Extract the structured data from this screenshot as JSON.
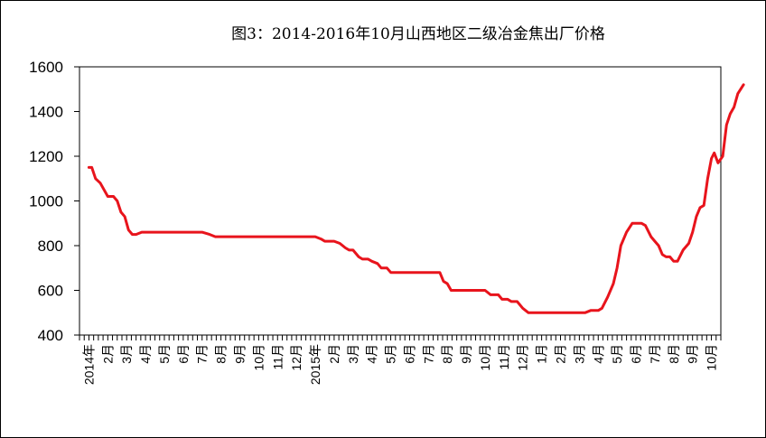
{
  "chart_data": {
    "type": "line",
    "title": "图3：2014-2016年10月山西地区二级冶金焦出厂价格",
    "xlabel": "",
    "ylabel": "",
    "ylim": [
      400,
      1600
    ],
    "yticks": [
      "400",
      "600",
      "800",
      "1000",
      "1200",
      "1400",
      "1600"
    ],
    "grid": false,
    "legend": "none",
    "line_color": "#e8141c",
    "x_tick_labels": [
      "2014年",
      "2月",
      "3月",
      "4月",
      "5月",
      "6月",
      "7月",
      "8月",
      "9月",
      "10月",
      "11月",
      "12月",
      "2015年",
      "2月",
      "3月",
      "4月",
      "5月",
      "6月",
      "7月",
      "8月",
      "9月",
      "10月",
      "11月",
      "12月",
      "1月",
      "2月",
      "3月",
      "4月",
      "5月",
      "6月",
      "7月",
      "8月",
      "9月",
      "10月"
    ],
    "series": [
      {
        "values": [
          [
            0.0,
            1150
          ],
          [
            0.15,
            1150
          ],
          [
            0.35,
            1100
          ],
          [
            0.6,
            1080
          ],
          [
            1.0,
            1020
          ],
          [
            1.3,
            1020
          ],
          [
            1.5,
            1000
          ],
          [
            1.7,
            950
          ],
          [
            1.9,
            930
          ],
          [
            2.1,
            870
          ],
          [
            2.3,
            850
          ],
          [
            2.5,
            850
          ],
          [
            2.8,
            860
          ],
          [
            3.0,
            860
          ],
          [
            4.0,
            860
          ],
          [
            5.0,
            860
          ],
          [
            6.0,
            860
          ],
          [
            6.4,
            850
          ],
          [
            6.7,
            840
          ],
          [
            7.0,
            840
          ],
          [
            8.0,
            840
          ],
          [
            9.0,
            840
          ],
          [
            10.0,
            840
          ],
          [
            11.0,
            840
          ],
          [
            12.0,
            840
          ],
          [
            12.3,
            830
          ],
          [
            12.5,
            820
          ],
          [
            12.8,
            820
          ],
          [
            13.0,
            820
          ],
          [
            13.3,
            810
          ],
          [
            13.6,
            790
          ],
          [
            13.8,
            780
          ],
          [
            14.0,
            780
          ],
          [
            14.3,
            750
          ],
          [
            14.5,
            740
          ],
          [
            14.8,
            740
          ],
          [
            15.0,
            730
          ],
          [
            15.3,
            720
          ],
          [
            15.5,
            700
          ],
          [
            15.8,
            700
          ],
          [
            16.0,
            680
          ],
          [
            16.3,
            680
          ],
          [
            17.0,
            680
          ],
          [
            18.0,
            680
          ],
          [
            18.6,
            680
          ],
          [
            18.8,
            640
          ],
          [
            19.0,
            630
          ],
          [
            19.2,
            600
          ],
          [
            19.5,
            600
          ],
          [
            20.0,
            600
          ],
          [
            21.0,
            600
          ],
          [
            21.3,
            580
          ],
          [
            21.7,
            580
          ],
          [
            21.9,
            560
          ],
          [
            22.2,
            560
          ],
          [
            22.4,
            550
          ],
          [
            22.7,
            550
          ],
          [
            23.0,
            520
          ],
          [
            23.3,
            500
          ],
          [
            24.0,
            500
          ],
          [
            25.0,
            500
          ],
          [
            26.0,
            500
          ],
          [
            26.3,
            500
          ],
          [
            26.6,
            510
          ],
          [
            27.0,
            510
          ],
          [
            27.2,
            520
          ],
          [
            27.5,
            570
          ],
          [
            27.8,
            630
          ],
          [
            28.0,
            700
          ],
          [
            28.2,
            800
          ],
          [
            28.5,
            860
          ],
          [
            28.8,
            900
          ],
          [
            29.0,
            900
          ],
          [
            29.3,
            900
          ],
          [
            29.5,
            890
          ],
          [
            29.8,
            840
          ],
          [
            30.0,
            820
          ],
          [
            30.2,
            800
          ],
          [
            30.4,
            760
          ],
          [
            30.6,
            750
          ],
          [
            30.8,
            750
          ],
          [
            31.0,
            730
          ],
          [
            31.2,
            730
          ],
          [
            31.5,
            780
          ],
          [
            31.8,
            810
          ],
          [
            32.0,
            860
          ],
          [
            32.2,
            930
          ],
          [
            32.4,
            970
          ],
          [
            32.6,
            980
          ],
          [
            32.8,
            1100
          ],
          [
            33.0,
            1190
          ],
          [
            33.15,
            1215
          ],
          [
            33.35,
            1170
          ],
          [
            33.6,
            1200
          ],
          [
            33.8,
            1340
          ],
          [
            34.0,
            1390
          ],
          [
            34.2,
            1420
          ],
          [
            34.4,
            1480
          ],
          [
            34.7,
            1520
          ]
        ]
      }
    ]
  }
}
